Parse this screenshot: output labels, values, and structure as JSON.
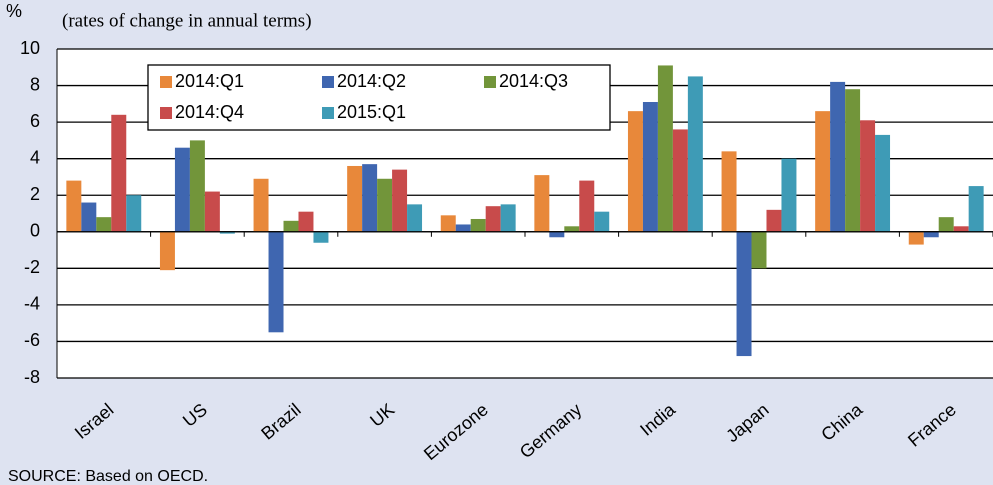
{
  "chart_data": {
    "type": "bar",
    "subtitle": "(rates of change in annual terms)",
    "y_axis_label": "%",
    "source": "SOURCE:  Based on OECD.",
    "categories": [
      "Israel",
      "US",
      "Brazil",
      "UK",
      "Eurozone",
      "Germany",
      "India",
      "Japan",
      "China",
      "France"
    ],
    "series": [
      {
        "name": "2014:Q1",
        "color": "#e8883a",
        "values": [
          2.8,
          -2.1,
          2.9,
          3.6,
          0.9,
          3.1,
          6.6,
          4.4,
          6.6,
          -0.7
        ]
      },
      {
        "name": "2014:Q2",
        "color": "#3f66b0",
        "values": [
          1.6,
          4.6,
          -5.5,
          3.7,
          0.4,
          -0.3,
          7.1,
          -6.8,
          8.2,
          -0.3
        ]
      },
      {
        "name": "2014:Q3",
        "color": "#72953a",
        "values": [
          0.8,
          5.0,
          0.6,
          2.9,
          0.7,
          0.3,
          9.1,
          -2.0,
          7.8,
          0.8
        ]
      },
      {
        "name": "2014:Q4",
        "color": "#c84b4b",
        "values": [
          6.4,
          2.2,
          1.1,
          3.4,
          1.4,
          2.8,
          5.6,
          1.2,
          6.1,
          0.3
        ]
      },
      {
        "name": "2015:Q1",
        "color": "#3e9bb6",
        "values": [
          2.0,
          -0.1,
          -0.6,
          1.5,
          1.5,
          1.1,
          8.5,
          4.0,
          5.3,
          2.5
        ]
      }
    ],
    "ylim": [
      -8,
      10
    ],
    "yticks": [
      -8,
      -6,
      -4,
      -2,
      0,
      2,
      4,
      6,
      8,
      10
    ],
    "grid": true,
    "legend": "upper left"
  }
}
